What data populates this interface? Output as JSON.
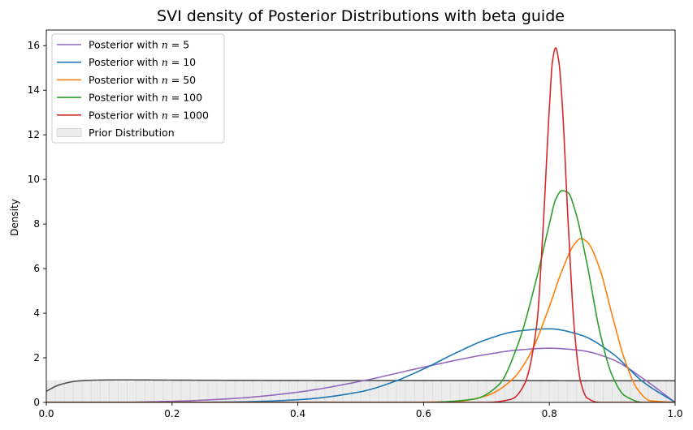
{
  "chart_data": {
    "type": "line",
    "title": "SVI density of Posterior Distributions with beta guide",
    "xlabel": "",
    "ylabel": "Density",
    "xlim": [
      0.0,
      1.0
    ],
    "ylim": [
      0,
      16.7
    ],
    "x_ticks": [
      "0.0",
      "0.2",
      "0.4",
      "0.6",
      "0.8",
      "1.0"
    ],
    "y_ticks": [
      "0",
      "2",
      "4",
      "6",
      "8",
      "10",
      "12",
      "14",
      "16"
    ],
    "grid": false,
    "legend_position": "top-left",
    "series": [
      {
        "name": "Posterior with n = 5",
        "legend_prefix": "Posterior with ",
        "legend_var": "n",
        "legend_suffix": " = 5",
        "color": "#9467bd",
        "x": [
          0.0,
          0.1,
          0.2,
          0.3,
          0.4,
          0.5,
          0.6,
          0.7,
          0.75,
          0.8,
          0.85,
          0.9,
          0.95,
          1.0
        ],
        "y": [
          0.0,
          0.0,
          0.05,
          0.18,
          0.46,
          0.95,
          1.58,
          2.15,
          2.35,
          2.43,
          2.33,
          1.93,
          1.05,
          0.0
        ]
      },
      {
        "name": "Posterior with n = 10",
        "legend_prefix": "Posterior with ",
        "legend_var": "n",
        "legend_suffix": " = 10",
        "color": "#1f77b4",
        "x": [
          0.0,
          0.2,
          0.3,
          0.4,
          0.5,
          0.55,
          0.6,
          0.65,
          0.7,
          0.75,
          0.8,
          0.85,
          0.9,
          0.95,
          1.0
        ],
        "y": [
          0.0,
          0.0,
          0.02,
          0.12,
          0.48,
          0.9,
          1.5,
          2.2,
          2.82,
          3.2,
          3.3,
          3.02,
          2.2,
          0.9,
          0.0
        ]
      },
      {
        "name": "Posterior with n = 50",
        "legend_prefix": "Posterior with ",
        "legend_var": "n",
        "legend_suffix": " = 50",
        "color": "#ff7f0e",
        "x": [
          0.0,
          0.55,
          0.65,
          0.7,
          0.74,
          0.77,
          0.8,
          0.82,
          0.84,
          0.85,
          0.86,
          0.88,
          0.9,
          0.92,
          0.94,
          0.96,
          1.0
        ],
        "y": [
          0.0,
          0.0,
          0.04,
          0.3,
          1.0,
          2.2,
          4.3,
          5.9,
          7.1,
          7.35,
          7.2,
          6.0,
          3.9,
          1.9,
          0.6,
          0.08,
          0.0
        ]
      },
      {
        "name": "Posterior with n = 100",
        "legend_prefix": "Posterior with ",
        "legend_var": "n",
        "legend_suffix": " = 100",
        "color": "#2ca02c",
        "x": [
          0.0,
          0.6,
          0.68,
          0.72,
          0.75,
          0.78,
          0.8,
          0.81,
          0.82,
          0.83,
          0.84,
          0.86,
          0.88,
          0.9,
          0.92,
          0.95,
          1.0
        ],
        "y": [
          0.0,
          0.0,
          0.15,
          0.8,
          2.6,
          5.6,
          8.0,
          9.1,
          9.5,
          9.4,
          8.7,
          6.2,
          3.2,
          1.2,
          0.3,
          0.0,
          0.0
        ]
      },
      {
        "name": "Posterior with n = 1000",
        "legend_prefix": "Posterior with ",
        "legend_var": "n",
        "legend_suffix": " = 1000",
        "color": "#d62728",
        "x": [
          0.0,
          0.7,
          0.74,
          0.76,
          0.78,
          0.79,
          0.8,
          0.805,
          0.81,
          0.815,
          0.82,
          0.83,
          0.84,
          0.85,
          0.86,
          0.88,
          1.0
        ],
        "y": [
          0.0,
          0.0,
          0.15,
          0.8,
          3.5,
          7.8,
          13.2,
          15.3,
          15.9,
          15.3,
          13.6,
          8.0,
          3.2,
          0.9,
          0.2,
          0.0,
          0.0
        ]
      }
    ],
    "prior": {
      "name": "Prior Distribution",
      "color": "#ececec",
      "line_color": "#505050",
      "x": [
        0.0,
        0.02,
        0.05,
        0.08,
        0.12,
        0.2,
        0.3,
        0.5,
        0.7,
        0.9,
        1.0
      ],
      "y": [
        0.5,
        0.78,
        0.96,
        1.0,
        1.01,
        1.0,
        0.99,
        0.98,
        0.98,
        0.97,
        0.97
      ]
    }
  }
}
